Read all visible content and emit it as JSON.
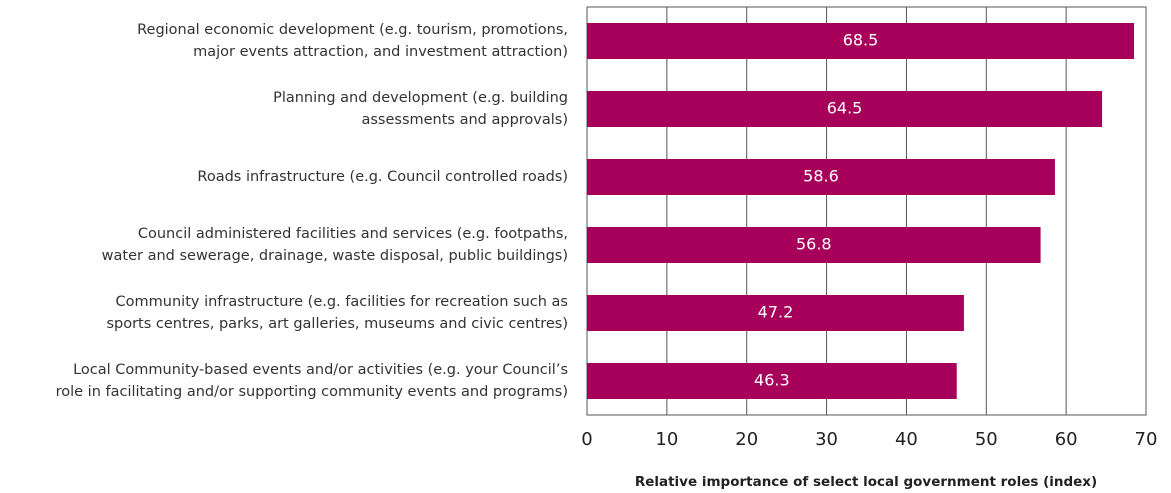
{
  "chart_data": {
    "type": "bar",
    "orientation": "horizontal",
    "categories": [
      [
        "Regional economic development (e.g. tourism, promotions,",
        "major events attraction, and investment attraction)"
      ],
      [
        "Planning and development (e.g. building",
        "assessments and approvals)"
      ],
      [
        "Roads infrastructure (e.g. Council controlled roads)"
      ],
      [
        "Council administered facilities and services (e.g. footpaths,",
        "water and sewerage, drainage, waste disposal, public buildings)"
      ],
      [
        "Community infrastructure (e.g. facilities for recreation such as",
        "sports centres, parks, art galleries, museums and civic centres)"
      ],
      [
        "Local Community-based events and/or activities (e.g. your Council’s",
        "role in facilitating and/or supporting community events and programs)"
      ]
    ],
    "values": [
      68.5,
      64.5,
      58.6,
      56.8,
      47.2,
      46.3
    ],
    "color": "#a6005b",
    "xlim": [
      0,
      70
    ],
    "xticks": [
      0,
      10,
      20,
      30,
      40,
      50,
      60,
      70
    ],
    "grid": true,
    "xlabel": "Relative importance of select local government roles (index)"
  }
}
